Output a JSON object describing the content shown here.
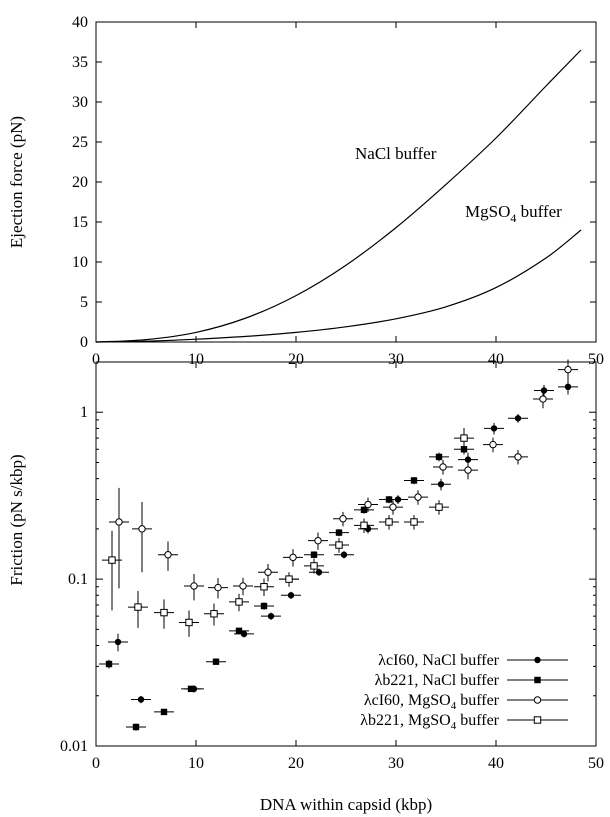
{
  "chart_data": [
    {
      "type": "line",
      "title": "",
      "xlabel": "",
      "ylabel": "Ejection force (pN)",
      "xlim": [
        0,
        50
      ],
      "ylim": [
        0,
        40
      ],
      "xticks": [
        "0",
        "10",
        "20",
        "30",
        "40",
        "50"
      ],
      "yticks": [
        "0",
        "5",
        "10",
        "15",
        "20",
        "25",
        "30",
        "35",
        "40"
      ],
      "grid": false,
      "series": [
        {
          "name": "NaCl buffer",
          "x": [
            0,
            5,
            10,
            15,
            20,
            25,
            30,
            35,
            40,
            45,
            48.5
          ],
          "y": [
            0,
            0.3,
            1.2,
            3.0,
            5.8,
            9.6,
            14.3,
            19.7,
            25.5,
            32.0,
            36.5
          ]
        },
        {
          "name": "MgSO4 buffer",
          "name_sub": "4",
          "x": [
            0,
            5,
            10,
            15,
            20,
            25,
            30,
            35,
            40,
            45,
            48.5
          ],
          "y": [
            0,
            0.1,
            0.35,
            0.7,
            1.2,
            1.9,
            2.9,
            4.4,
            6.8,
            10.5,
            14.0
          ]
        }
      ]
    },
    {
      "type": "scatter",
      "title": "",
      "xlabel": "DNA within capsid (kbp)",
      "ylabel": "Friction (pN s/kbp)",
      "xlim": [
        0,
        50
      ],
      "ylim": [
        0.01,
        2.0
      ],
      "yscale": "log",
      "xticks": [
        "0",
        "10",
        "20",
        "30",
        "40",
        "50"
      ],
      "yticks": [
        "0.01",
        "0.1",
        "1"
      ],
      "grid": false,
      "legend_position": "bottom-right",
      "series": [
        {
          "name": "λcI60, NaCl buffer",
          "marker": "filled-circle",
          "x": [
            2.2,
            4.5,
            9.8,
            14.8,
            17.5,
            19.5,
            22.3,
            24.8,
            27.2,
            30.2,
            34.5,
            37.2,
            39.8,
            42.2,
            44.8,
            47.2
          ],
          "y": [
            0.042,
            0.019,
            0.022,
            0.047,
            0.06,
            0.08,
            0.11,
            0.14,
            0.2,
            0.3,
            0.37,
            0.52,
            0.8,
            0.92,
            1.35,
            1.42
          ],
          "xerr": [
            1.0,
            1.0,
            1.0,
            1.0,
            1.0,
            1.0,
            1.0,
            1.0,
            1.0,
            1.0,
            1.0,
            1.0,
            1.0,
            1.0,
            1.0,
            1.0
          ],
          "yerr_frac": [
            0.12,
            0.05,
            0.05,
            0.05,
            0.05,
            0.05,
            0.05,
            0.05,
            0.06,
            0.06,
            0.08,
            0.1,
            0.08,
            0.06,
            0.08,
            0.1
          ]
        },
        {
          "name": "λb221, NaCl buffer",
          "marker": "filled-square",
          "x": [
            1.3,
            4.0,
            6.8,
            9.5,
            12.0,
            14.3,
            16.8,
            19.3,
            21.8,
            24.3,
            26.8,
            29.3,
            31.8,
            34.3,
            36.8
          ],
          "y": [
            0.031,
            0.013,
            0.016,
            0.022,
            0.032,
            0.049,
            0.069,
            0.1,
            0.14,
            0.19,
            0.26,
            0.3,
            0.39,
            0.54,
            0.6
          ],
          "xerr": [
            1.0,
            1.0,
            1.0,
            1.0,
            1.0,
            1.0,
            1.0,
            1.0,
            1.0,
            1.0,
            1.0,
            1.0,
            1.0,
            1.0,
            1.0
          ],
          "yerr_frac": [
            0.06,
            0.05,
            0.04,
            0.04,
            0.04,
            0.04,
            0.05,
            0.05,
            0.05,
            0.05,
            0.05,
            0.05,
            0.05,
            0.06,
            0.07
          ]
        },
        {
          "name": "λcI60, MgSO4 buffer",
          "name_sub": "4",
          "marker": "open-circle",
          "x": [
            2.3,
            4.6,
            7.2,
            9.8,
            12.2,
            14.7,
            17.2,
            19.7,
            22.2,
            24.7,
            27.2,
            29.7,
            32.2,
            34.7,
            37.2,
            39.7,
            42.2,
            44.7,
            47.2
          ],
          "y": [
            0.22,
            0.2,
            0.14,
            0.091,
            0.089,
            0.091,
            0.11,
            0.135,
            0.17,
            0.23,
            0.28,
            0.27,
            0.31,
            0.47,
            0.45,
            0.64,
            0.54,
            1.2,
            1.8
          ],
          "xerr": [
            1.0,
            1.0,
            1.0,
            1.0,
            1.0,
            1.0,
            1.0,
            1.0,
            1.0,
            1.0,
            1.0,
            1.0,
            1.0,
            1.0,
            1.0,
            1.0,
            1.0,
            1.0,
            1.0
          ],
          "yerr_frac": [
            0.6,
            0.45,
            0.2,
            0.18,
            0.14,
            0.12,
            0.12,
            0.12,
            0.12,
            0.1,
            0.1,
            0.1,
            0.1,
            0.1,
            0.12,
            0.1,
            0.1,
            0.12,
            0.15
          ]
        },
        {
          "name": "λb221, MgSO4 buffer",
          "name_sub": "4",
          "marker": "open-square",
          "x": [
            1.6,
            4.2,
            6.8,
            9.3,
            11.8,
            14.3,
            16.8,
            19.3,
            21.8,
            24.3,
            26.8,
            29.3,
            31.8,
            34.3,
            36.8
          ],
          "y": [
            0.13,
            0.068,
            0.063,
            0.055,
            0.062,
            0.073,
            0.09,
            0.1,
            0.12,
            0.16,
            0.21,
            0.22,
            0.22,
            0.27,
            0.7
          ],
          "xerr": [
            1.0,
            1.0,
            1.0,
            1.0,
            1.0,
            1.0,
            1.0,
            1.0,
            1.0,
            1.0,
            1.0,
            1.0,
            1.0,
            1.0,
            1.0
          ],
          "yerr_frac": [
            0.5,
            0.25,
            0.2,
            0.18,
            0.15,
            0.12,
            0.12,
            0.1,
            0.1,
            0.1,
            0.1,
            0.1,
            0.1,
            0.1,
            0.15
          ]
        }
      ]
    }
  ],
  "annotations": {
    "nacl_label": "NaCl buffer",
    "mgso4_label_main": "MgSO",
    "mgso4_label_sub": "4",
    "mgso4_label_tail": " buffer"
  }
}
